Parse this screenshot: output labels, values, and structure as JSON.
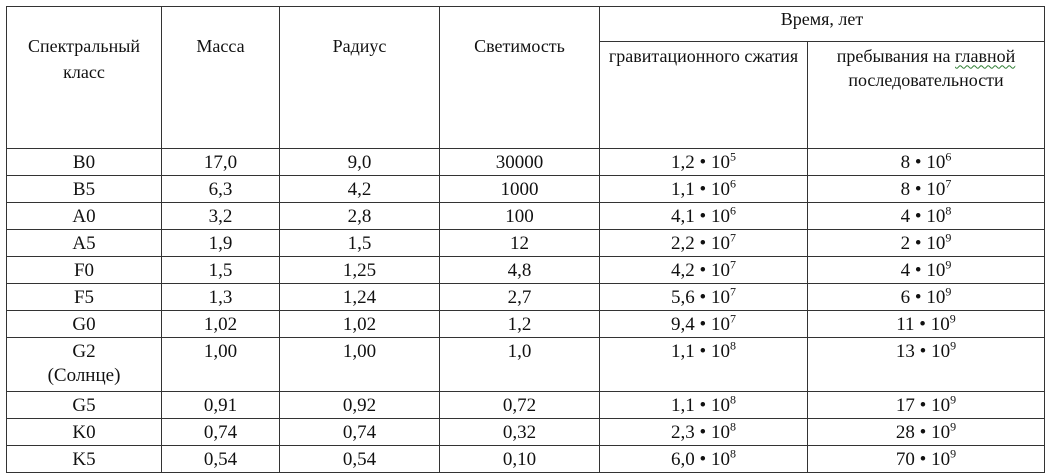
{
  "header": {
    "spectral_class": "Спектральный класс",
    "mass": "Масса",
    "radius": "Радиус",
    "luminosity": "Светимость",
    "time_group": "Время, лет",
    "grav_contraction": "гравитационного сжатия",
    "main_sequence_prefix": "пребывания на",
    "main_sequence_word": "главной",
    "main_sequence_suffix": "последовательности"
  },
  "rows": [
    {
      "cls": "B0",
      "note": "",
      "mass": "17,0",
      "radius": "9,0",
      "lum": "30000",
      "grav_m": "1,2 • 10",
      "grav_e": "5",
      "ms_m": "8 • 10",
      "ms_e": "6"
    },
    {
      "cls": "B5",
      "note": "",
      "mass": "6,3",
      "radius": "4,2",
      "lum": "1000",
      "grav_m": "1,1 • 10",
      "grav_e": "6",
      "ms_m": "8 • 10",
      "ms_e": "7"
    },
    {
      "cls": "A0",
      "note": "",
      "mass": "3,2",
      "radius": "2,8",
      "lum": "100",
      "grav_m": "4,1 • 10",
      "grav_e": "6",
      "ms_m": "4 • 10",
      "ms_e": "8"
    },
    {
      "cls": "A5",
      "note": "",
      "mass": "1,9",
      "radius": "1,5",
      "lum": "12",
      "grav_m": "2,2 • 10",
      "grav_e": "7",
      "ms_m": "2 • 10",
      "ms_e": "9"
    },
    {
      "cls": "F0",
      "note": "",
      "mass": "1,5",
      "radius": "1,25",
      "lum": "4,8",
      "grav_m": "4,2 • 10",
      "grav_e": "7",
      "ms_m": "4 • 10",
      "ms_e": "9"
    },
    {
      "cls": "F5",
      "note": "",
      "mass": "1,3",
      "radius": "1,24",
      "lum": "2,7",
      "grav_m": "5,6 • 10",
      "grav_e": "7",
      "ms_m": "6 • 10",
      "ms_e": "9"
    },
    {
      "cls": "G0",
      "note": "",
      "mass": "1,02",
      "radius": "1,02",
      "lum": "1,2",
      "grav_m": "9,4 • 10",
      "grav_e": "7",
      "ms_m": "11 • 10",
      "ms_e": "9"
    },
    {
      "cls": "G2",
      "note": "(Солнце)",
      "mass": "1,00",
      "radius": "1,00",
      "lum": "1,0",
      "grav_m": "1,1 • 10",
      "grav_e": "8",
      "ms_m": "13 • 10",
      "ms_e": "9"
    },
    {
      "cls": "G5",
      "note": "",
      "mass": "0,91",
      "radius": "0,92",
      "lum": "0,72",
      "grav_m": "1,1 • 10",
      "grav_e": "8",
      "ms_m": "17 • 10",
      "ms_e": "9"
    },
    {
      "cls": "K0",
      "note": "",
      "mass": "0,74",
      "radius": "0,74",
      "lum": "0,32",
      "grav_m": "2,3 • 10",
      "grav_e": "8",
      "ms_m": "28 • 10",
      "ms_e": "9"
    },
    {
      "cls": "K5",
      "note": "",
      "mass": "0,54",
      "radius": "0,54",
      "lum": "0,10",
      "grav_m": "6,0 • 10",
      "grav_e": "8",
      "ms_m": "70 • 10",
      "ms_e": "9"
    }
  ]
}
